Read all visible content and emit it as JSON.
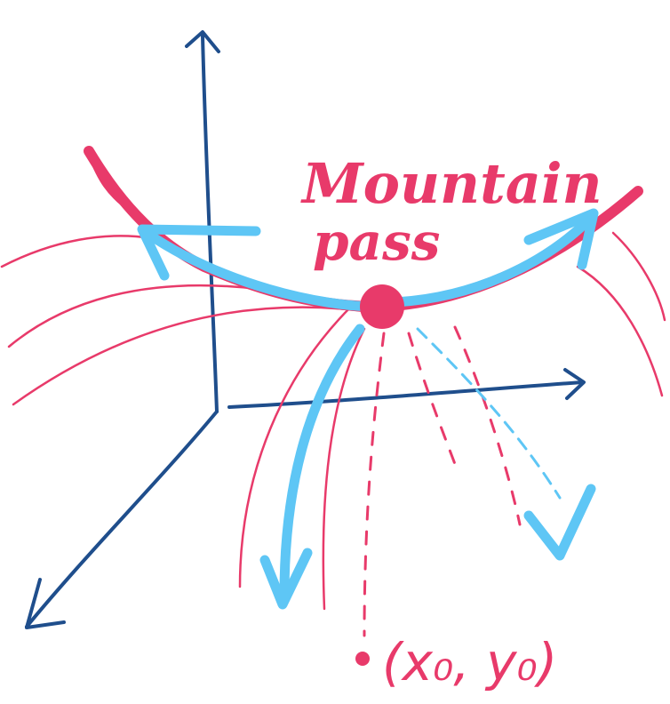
{
  "labels": {
    "title_line1": "Mountain",
    "title_line2": "pass",
    "point": "(x₀, y₀)"
  },
  "colors": {
    "axis": "#1f4e8c",
    "surface": "#e83a6a",
    "path": "#5ec6f5"
  }
}
